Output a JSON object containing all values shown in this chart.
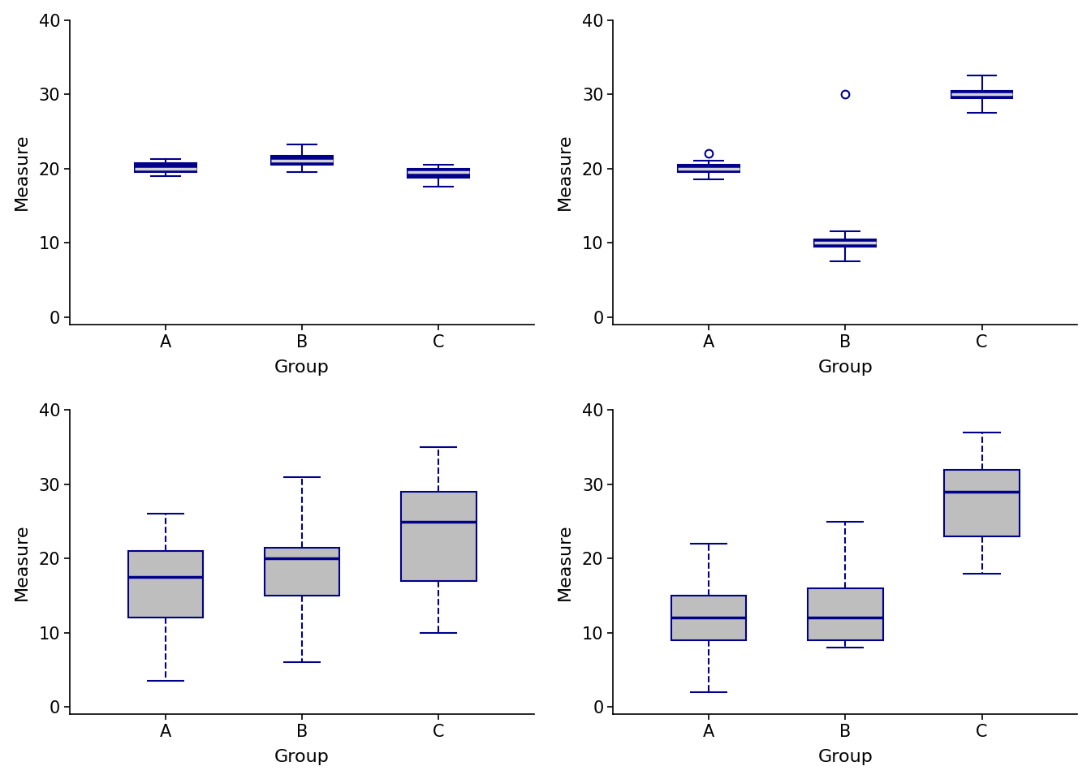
{
  "navy": "#00008B",
  "gray_fill": "#BEBEBE",
  "white": "#FFFFFF",
  "xlabel": "Group",
  "ylabel": "Measure",
  "categories": [
    "A",
    "B",
    "C"
  ],
  "ylim": [
    -1,
    40
  ],
  "yticks": [
    0,
    10,
    20,
    30,
    40
  ],
  "plot1": {
    "A": {
      "q1": 19.5,
      "median": 20.0,
      "q3": 20.7,
      "whisker_low": 19.0,
      "whisker_high": 21.3,
      "fliers": []
    },
    "B": {
      "q1": 20.5,
      "median": 21.0,
      "q3": 21.7,
      "whisker_low": 19.5,
      "whisker_high": 23.2,
      "fliers": []
    },
    "C": {
      "q1": 18.8,
      "median": 19.5,
      "q3": 20.0,
      "whisker_low": 17.5,
      "whisker_high": 20.5,
      "fliers": []
    }
  },
  "plot2": {
    "A": {
      "q1": 19.5,
      "median": 20.0,
      "q3": 20.5,
      "whisker_low": 18.5,
      "whisker_high": 21.0,
      "fliers": [
        22.0
      ]
    },
    "B": {
      "q1": 9.5,
      "median": 10.0,
      "q3": 10.5,
      "whisker_low": 7.5,
      "whisker_high": 11.5,
      "fliers": [
        30.0
      ]
    },
    "C": {
      "q1": 29.5,
      "median": 30.0,
      "q3": 30.5,
      "whisker_low": 27.5,
      "whisker_high": 32.5,
      "fliers": []
    }
  },
  "plot3": {
    "A": {
      "q1": 12.0,
      "median": 17.5,
      "q3": 21.0,
      "whisker_low": 3.5,
      "whisker_high": 26.0,
      "fliers": []
    },
    "B": {
      "q1": 15.0,
      "median": 20.0,
      "q3": 21.5,
      "whisker_low": 6.0,
      "whisker_high": 31.0,
      "fliers": []
    },
    "C": {
      "q1": 17.0,
      "median": 25.0,
      "q3": 29.0,
      "whisker_low": 10.0,
      "whisker_high": 35.0,
      "fliers": []
    }
  },
  "plot4": {
    "A": {
      "q1": 9.0,
      "median": 12.0,
      "q3": 15.0,
      "whisker_low": 2.0,
      "whisker_high": 22.0,
      "fliers": []
    },
    "B": {
      "q1": 9.0,
      "median": 12.0,
      "q3": 16.0,
      "whisker_low": 8.0,
      "whisker_high": 25.0,
      "fliers": []
    },
    "C": {
      "q1": 23.0,
      "median": 29.0,
      "q3": 32.0,
      "whisker_low": 18.0,
      "whisker_high": 37.0,
      "fliers": []
    }
  }
}
